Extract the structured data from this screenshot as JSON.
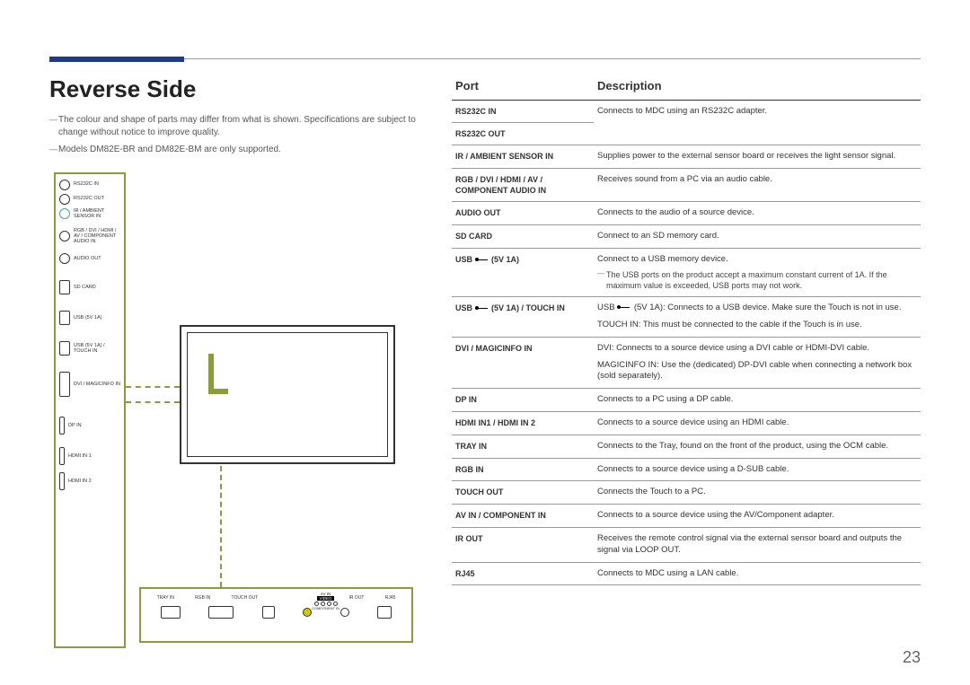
{
  "page_number": "23",
  "title": "Reverse Side",
  "notes": [
    "The colour and shape of parts may differ from what is shown. Specifications are subject to change without notice to improve quality.",
    "Models DM82E-BR and DM82E-BM are only supported."
  ],
  "headers": {
    "port": "Port",
    "desc": "Description"
  },
  "side_ports": [
    "RS232C IN",
    "RS232C OUT",
    "IR / AMBIENT SENSOR IN",
    "RGB / DVI / HDMI / AV / COMPONENT AUDIO IN",
    "AUDIO OUT",
    "SD CARD",
    "USB (5V 1A)",
    "USB (5V 1A) / TOUCH IN",
    "DVI / MAGICINFO IN",
    "DP IN",
    "HDMI IN 1",
    "HDMI IN 2"
  ],
  "bottom_ports": {
    "labels": [
      "TRAY IN",
      "RGB IN",
      "TOUCH OUT",
      "",
      "IR OUT",
      "RJ45"
    ],
    "av_label": "AV IN",
    "video_label": "VIDEO",
    "comp_label": "COMPONENT IN"
  },
  "rows": [
    {
      "port": "RS232C IN",
      "desc": "Connects to MDC using an RS232C adapter."
    },
    {
      "port": "RS232C OUT",
      "desc": ""
    },
    {
      "port": "IR / AMBIENT SENSOR IN",
      "desc": "Supplies power to the external sensor board or receives the light sensor signal."
    },
    {
      "port": "RGB / DVI / HDMI / AV / COMPONENT AUDIO IN",
      "desc": "Receives sound from a PC via an audio cable."
    },
    {
      "port": "AUDIO OUT",
      "desc": "Connects to the audio of a source device."
    },
    {
      "port": "SD CARD",
      "desc": "Connect to an SD memory card."
    },
    {
      "port": "USB ⬌ (5V 1A)",
      "desc": "Connect to a USB memory device.",
      "note": "The USB ports on the product accept a maximum constant current of 1A. If the maximum value is exceeded, USB ports may not work."
    },
    {
      "port": "USB ⬌ (5V 1A) / TOUCH IN",
      "desc": "USB ⬌ (5V 1A): Connects to a USB device. Make sure the Touch is not in use.\nTOUCH IN: This must be connected to the cable if the Touch is in use."
    },
    {
      "port": "DVI / MAGICINFO IN",
      "desc": "DVI: Connects to a source device using a DVI cable or HDMI-DVI cable.\nMAGICINFO IN: Use the (dedicated) DP-DVI cable when connecting a network box (sold separately)."
    },
    {
      "port": "DP IN",
      "desc": "Connects to a PC using a DP cable."
    },
    {
      "port": "HDMI IN1 / HDMI IN 2",
      "desc": "Connects to a source device using an HDMI cable."
    },
    {
      "port": "TRAY IN",
      "desc": "Connects to the Tray, found on the front of the product, using the OCM cable."
    },
    {
      "port": "RGB IN",
      "desc": "Connects to a source device using a D-SUB cable."
    },
    {
      "port": "TOUCH OUT",
      "desc": "Connects the Touch to a PC."
    },
    {
      "port": "AV IN / COMPONENT IN",
      "desc": "Connects to a source device using the AV/Component adapter."
    },
    {
      "port": "IR OUT",
      "desc": "Receives the remote control signal via the external sensor board and outputs the signal via LOOP OUT."
    },
    {
      "port": "RJ45",
      "desc": "Connects to MDC using a LAN cable."
    }
  ]
}
